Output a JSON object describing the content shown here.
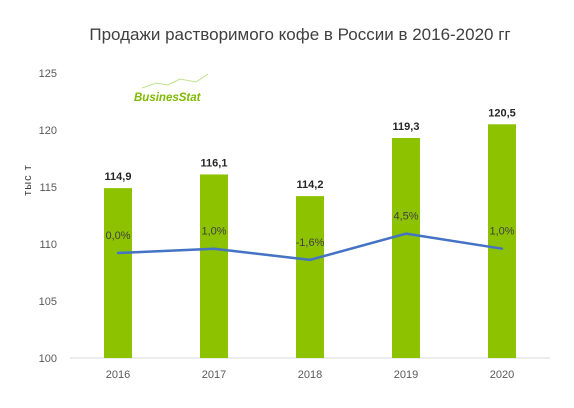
{
  "chart_data": {
    "type": "bar",
    "title": "Продажи растворимого кофе в России в  2016-2020 гг",
    "ylabel": "тыс т",
    "xlabel": "",
    "categories": [
      "2016",
      "2017",
      "2018",
      "2019",
      "2020"
    ],
    "ylim": [
      100,
      125
    ],
    "yticks": [
      100,
      105,
      110,
      115,
      120,
      125
    ],
    "grid": false,
    "series": [
      {
        "type": "bar",
        "values": [
          114.9,
          116.1,
          114.2,
          119.3,
          120.5
        ],
        "labels": [
          "114,9",
          "116,1",
          "114,2",
          "119,3",
          "120,5"
        ],
        "color": "#8dc200"
      },
      {
        "type": "line",
        "values": [
          0.0,
          1.0,
          -1.6,
          4.5,
          1.0
        ],
        "labels": [
          "0,0%",
          "1,0%",
          "-1,6%",
          "4,5%",
          "1,0%"
        ],
        "color": "#4472c4",
        "axis": "secondary (not printed)"
      }
    ]
  },
  "logo": {
    "text": "BusinesStat",
    "color": "#7fba00"
  }
}
